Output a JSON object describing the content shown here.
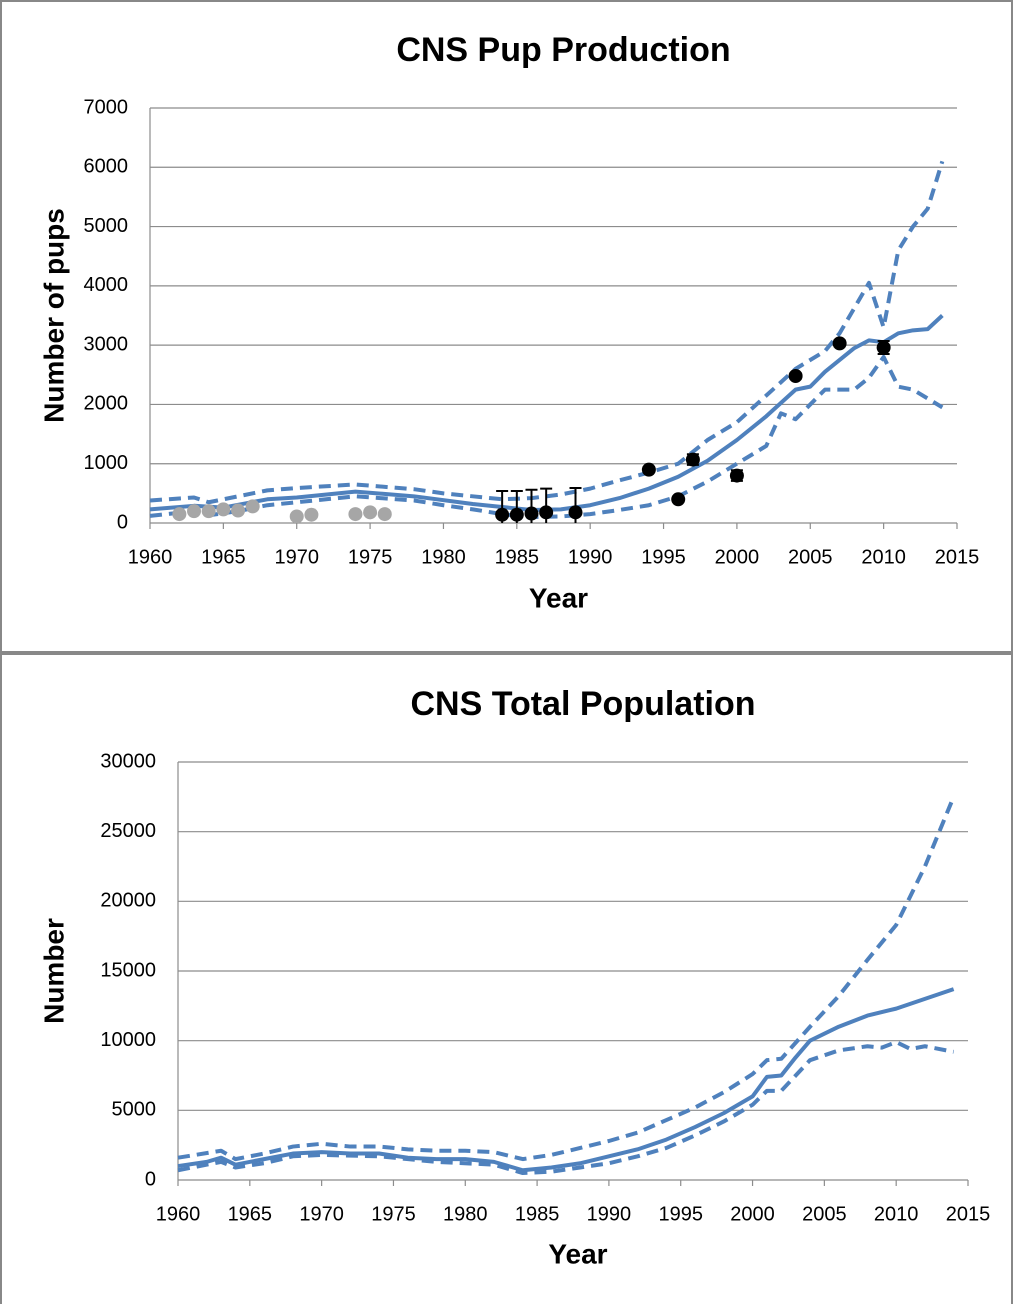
{
  "chart_data": [
    {
      "type": "line",
      "title": "CNS Pup Production",
      "xlabel": "Year",
      "ylabel": "Number of pups",
      "xlim": [
        1960,
        2015
      ],
      "xticks": [
        1960,
        1965,
        1970,
        1975,
        1980,
        1985,
        1990,
        1995,
        2000,
        2005,
        2010,
        2015
      ],
      "ylim": [
        0,
        7000
      ],
      "yticks": [
        0,
        1000,
        2000,
        3000,
        4000,
        5000,
        6000,
        7000
      ],
      "grid": true,
      "series": [
        {
          "style": "solid",
          "color": "#4f81bd",
          "x": [
            1960,
            1963,
            1965,
            1968,
            1970,
            1974,
            1978,
            1982,
            1984,
            1986,
            1988,
            1990,
            1992,
            1994,
            1996,
            1998,
            2000,
            2002,
            2004,
            2005,
            2006,
            2008,
            2009,
            2010,
            2011,
            2012,
            2013,
            2014
          ],
          "values": [
            230,
            290,
            260,
            400,
            430,
            530,
            450,
            320,
            270,
            220,
            230,
            300,
            420,
            580,
            780,
            1050,
            1400,
            1800,
            2250,
            2300,
            2550,
            2950,
            3080,
            3050,
            3200,
            3250,
            3270,
            3500
          ]
        },
        {
          "style": "dashed",
          "color": "#4f81bd",
          "x": [
            1960,
            1963,
            1964,
            1966,
            1968,
            1970,
            1974,
            1978,
            1980,
            1982,
            1984,
            1986,
            1988,
            1990,
            1992,
            1994,
            1996,
            1998,
            2000,
            2002,
            2004,
            2006,
            2007,
            2009,
            2010,
            2011,
            2012,
            2013,
            2014
          ],
          "values": [
            380,
            430,
            350,
            450,
            550,
            590,
            650,
            570,
            500,
            450,
            400,
            420,
            480,
            580,
            720,
            850,
            1000,
            1400,
            1700,
            2150,
            2600,
            2900,
            3200,
            4050,
            3300,
            4600,
            5000,
            5300,
            6100
          ]
        },
        {
          "style": "dashed",
          "color": "#4f81bd",
          "x": [
            1960,
            1963,
            1964,
            1966,
            1968,
            1970,
            1974,
            1978,
            1980,
            1982,
            1984,
            1986,
            1988,
            1990,
            1992,
            1994,
            1996,
            1998,
            2000,
            2002,
            2003,
            2004,
            2006,
            2008,
            2009,
            2010,
            2011,
            2012,
            2013,
            2014
          ],
          "values": [
            120,
            200,
            130,
            200,
            300,
            350,
            450,
            380,
            300,
            230,
            150,
            100,
            110,
            150,
            220,
            300,
            450,
            700,
            1000,
            1300,
            1850,
            1750,
            2250,
            2250,
            2450,
            2800,
            2300,
            2250,
            2100,
            1950
          ]
        },
        {
          "style": "marker",
          "color": "#a6a6a6",
          "x": [
            1962,
            1963,
            1964,
            1965,
            1966,
            1967,
            1970,
            1971,
            1974,
            1975,
            1976
          ],
          "values": [
            150,
            200,
            200,
            230,
            210,
            280,
            110,
            140,
            150,
            180,
            150
          ]
        },
        {
          "style": "marker",
          "color": "#000000",
          "x": [
            1984,
            1985,
            1986,
            1987,
            1989,
            1994,
            1996,
            1997,
            2000,
            2004,
            2007,
            2010
          ],
          "values": [
            140,
            140,
            160,
            180,
            180,
            900,
            400,
            1070,
            800,
            2480,
            3030,
            2960
          ],
          "errors": [
            400,
            400,
            400,
            400,
            410,
            40,
            40,
            90,
            90,
            50,
            50,
            110
          ]
        }
      ]
    },
    {
      "type": "line",
      "title": "CNS Total Population",
      "xlabel": "Year",
      "ylabel": "Number",
      "xlim": [
        1960,
        2015
      ],
      "xticks": [
        1960,
        1965,
        1970,
        1975,
        1980,
        1985,
        1990,
        1995,
        2000,
        2005,
        2010,
        2015
      ],
      "ylim": [
        0,
        30000
      ],
      "yticks": [
        0,
        5000,
        10000,
        15000,
        20000,
        25000,
        30000
      ],
      "grid": true,
      "series": [
        {
          "style": "solid",
          "color": "#4f81bd",
          "x": [
            1960,
            1962,
            1963,
            1964,
            1966,
            1968,
            1970,
            1972,
            1974,
            1976,
            1978,
            1980,
            1982,
            1984,
            1986,
            1988,
            1990,
            1992,
            1994,
            1996,
            1998,
            2000,
            2001,
            2002,
            2003,
            2004,
            2006,
            2008,
            2010,
            2012,
            2014
          ],
          "values": [
            1000,
            1300,
            1600,
            1100,
            1500,
            1900,
            2000,
            1900,
            1900,
            1600,
            1500,
            1500,
            1300,
            700,
            900,
            1200,
            1700,
            2200,
            2900,
            3800,
            4800,
            6000,
            7400,
            7500,
            8800,
            10000,
            11000,
            11800,
            12300,
            13000,
            13700
          ]
        },
        {
          "style": "dashed",
          "color": "#4f81bd",
          "x": [
            1960,
            1963,
            1964,
            1966,
            1968,
            1970,
            1972,
            1974,
            1976,
            1978,
            1980,
            1982,
            1984,
            1986,
            1988,
            1990,
            1992,
            1994,
            1996,
            1998,
            2000,
            2001,
            2002,
            2004,
            2006,
            2008,
            2010,
            2012,
            2014
          ],
          "values": [
            1600,
            2100,
            1500,
            1900,
            2400,
            2600,
            2400,
            2400,
            2200,
            2100,
            2100,
            2000,
            1500,
            1800,
            2300,
            2800,
            3400,
            4300,
            5200,
            6300,
            7600,
            8600,
            8700,
            11000,
            13200,
            15800,
            18300,
            22500,
            27500
          ]
        },
        {
          "style": "dashed",
          "color": "#4f81bd",
          "x": [
            1960,
            1963,
            1964,
            1966,
            1968,
            1970,
            1974,
            1978,
            1982,
            1984,
            1986,
            1988,
            1990,
            1992,
            1994,
            1996,
            1998,
            2000,
            2001,
            2002,
            2004,
            2006,
            2008,
            2009,
            2010,
            2011,
            2012,
            2014
          ],
          "values": [
            700,
            1300,
            900,
            1200,
            1700,
            1800,
            1700,
            1300,
            1100,
            500,
            600,
            900,
            1200,
            1700,
            2300,
            3200,
            4200,
            5400,
            6400,
            6400,
            8600,
            9300,
            9600,
            9500,
            9900,
            9400,
            9600,
            9200
          ]
        }
      ]
    }
  ]
}
